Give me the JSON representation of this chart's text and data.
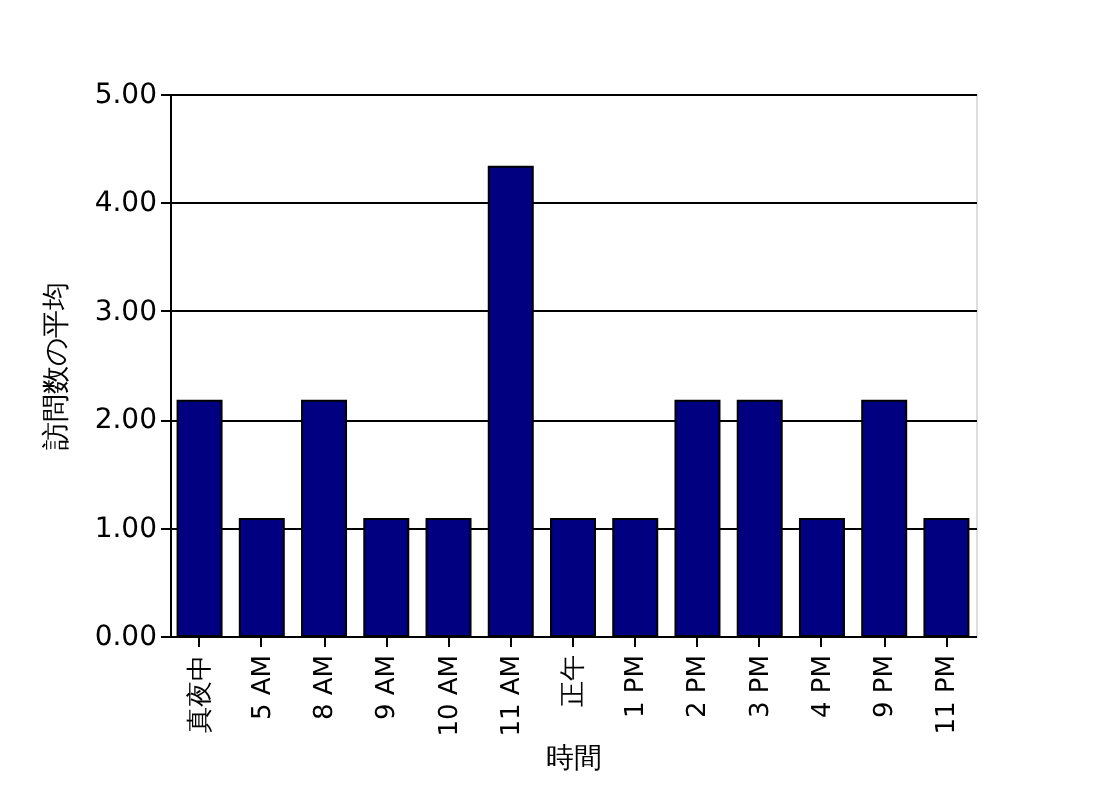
{
  "chart_data": {
    "type": "bar",
    "xlabel": "時間",
    "ylabel": "訪問数の平均",
    "categories": [
      "真夜中",
      "5 AM",
      "8 AM",
      "9 AM",
      "10 AM",
      "11 AM",
      "正午",
      "1 PM",
      "2 PM",
      "3 PM",
      "4 PM",
      "9 PM",
      "11 PM"
    ],
    "values": [
      2.17,
      1.08,
      2.17,
      1.08,
      1.08,
      4.33,
      1.08,
      1.08,
      2.17,
      2.17,
      1.08,
      2.17,
      1.08
    ],
    "color": "#000080",
    "ylim": [
      0,
      5
    ],
    "yticks": [
      {
        "value": 0,
        "label": "0.00"
      },
      {
        "value": 1,
        "label": "1.00"
      },
      {
        "value": 2,
        "label": "2.00"
      },
      {
        "value": 3,
        "label": "3.00"
      },
      {
        "value": 4,
        "label": "4.00"
      },
      {
        "value": 5,
        "label": "5.00"
      }
    ],
    "grid": "y"
  }
}
